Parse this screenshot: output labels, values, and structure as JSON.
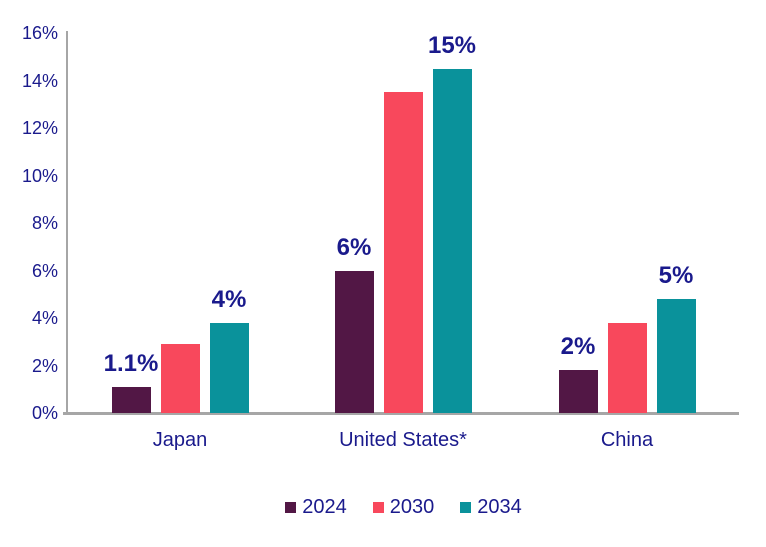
{
  "chart_data": {
    "type": "bar",
    "title": "",
    "categories": [
      "Japan",
      "United States*",
      "China"
    ],
    "series": [
      {
        "name": "2024",
        "color": "#521745",
        "values": [
          1.1,
          6.0,
          1.8
        ],
        "bar_labels": [
          "1.1%",
          "6%",
          "2%"
        ]
      },
      {
        "name": "2030",
        "color": "#f8485c",
        "values": [
          2.9,
          13.5,
          3.8
        ],
        "bar_labels": [
          null,
          null,
          null
        ]
      },
      {
        "name": "2034",
        "color": "#0a929b",
        "values": [
          3.8,
          14.5,
          4.8
        ],
        "bar_labels": [
          "4%",
          "15%",
          "5%"
        ]
      }
    ],
    "ylim": [
      0,
      16
    ],
    "ytick_step": 2,
    "ytick_labels": [
      "0%",
      "2%",
      "4%",
      "6%",
      "8%",
      "10%",
      "12%",
      "14%",
      "16%"
    ],
    "grid": false,
    "legend_position": "bottom",
    "legend_entries": [
      "2024",
      "2030",
      "2034"
    ]
  },
  "colors": {
    "label_text": "#1a1a8c",
    "axis_line": "#a6a6a6",
    "background": "#ffffff"
  }
}
